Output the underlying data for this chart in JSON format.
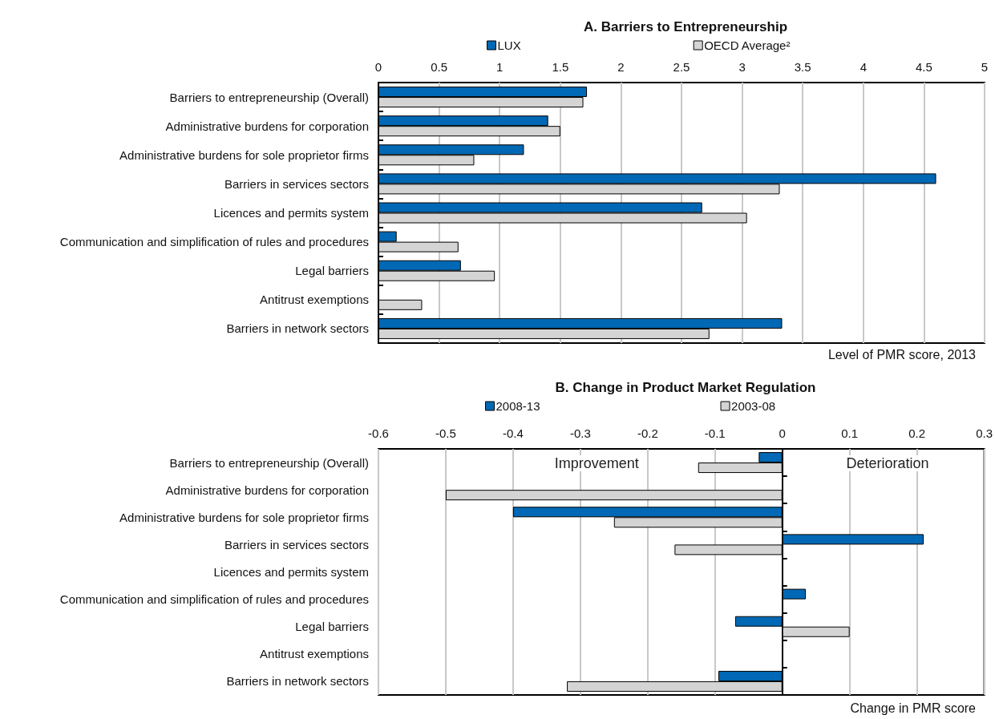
{
  "chart_data": [
    {
      "type": "bar",
      "orientation": "horizontal",
      "title": "A. Barriers to Entrepreneurship",
      "xlabel": "Level of PMR score, 2013",
      "categories": [
        "Barriers to entrepreneurship (Overall)",
        "Administrative burdens for corporation",
        "Administrative burdens for sole proprietor firms",
        "Barriers in services sectors",
        "Licences and permits system",
        "Communication and simplification of rules and procedures",
        "Legal barriers",
        "Antitrust exemptions",
        "Barriers in network sectors"
      ],
      "series": [
        {
          "name": "LUX",
          "color": "#0068b4",
          "values": [
            1.72,
            1.4,
            1.2,
            4.6,
            2.67,
            0.15,
            0.68,
            null,
            3.33
          ]
        },
        {
          "name": "OECD Average²",
          "color": "#d4d4d4",
          "values": [
            1.69,
            1.5,
            0.79,
            3.31,
            3.04,
            0.66,
            0.96,
            0.36,
            2.73
          ]
        }
      ],
      "xlim": [
        0,
        5
      ],
      "xticks": [
        0,
        0.5,
        1,
        1.5,
        2,
        2.5,
        3,
        3.5,
        4,
        4.5,
        5
      ],
      "grid": "x",
      "legend": "top"
    },
    {
      "type": "bar",
      "orientation": "horizontal",
      "title": "B. Change in Product Market Regulation",
      "xlabel": "Change in PMR score",
      "annotations": [
        "Improvement",
        "Deterioration"
      ],
      "categories": [
        "Barriers to entrepreneurship (Overall)",
        "Administrative burdens for corporation",
        "Administrative burdens for sole proprietor firms",
        "Barriers in services sectors",
        "Licences and permits system",
        "Communication and simplification of rules and procedures",
        "Legal barriers",
        "Antitrust exemptions",
        "Barriers in network sectors"
      ],
      "series": [
        {
          "name": "2008-13",
          "color": "#0068b4",
          "values": [
            -0.035,
            null,
            -0.4,
            0.21,
            null,
            0.035,
            -0.07,
            null,
            -0.095
          ]
        },
        {
          "name": "2003-08",
          "color": "#d4d4d4",
          "values": [
            -0.125,
            -0.5,
            -0.25,
            -0.16,
            null,
            null,
            0.1,
            null,
            -0.32
          ]
        }
      ],
      "xlim": [
        -0.6,
        0.3
      ],
      "xticks": [
        -0.6,
        -0.5,
        -0.4,
        -0.3,
        -0.2,
        -0.1,
        0,
        0.1,
        0.2,
        0.3
      ],
      "grid": "x",
      "legend": "top"
    }
  ]
}
